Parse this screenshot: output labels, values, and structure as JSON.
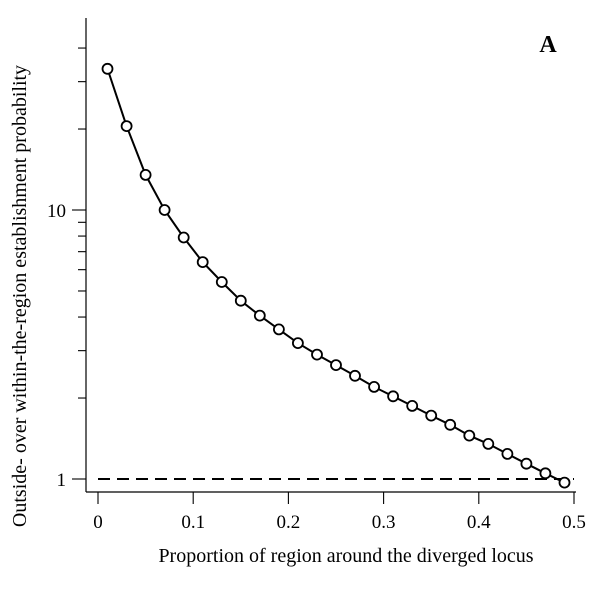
{
  "chart_data": {
    "type": "line",
    "title": "",
    "panel_label": "A",
    "xlabel": "Proportion of region around the diverged locus",
    "ylabel": "Outside- over within-the-region establishment probability",
    "xlim": [
      0,
      0.5
    ],
    "ylim": [
      0.9,
      40
    ],
    "y_scale": "log",
    "grid": false,
    "legend": "none",
    "x_ticks": [
      0,
      0.1,
      0.2,
      0.3,
      0.4,
      0.5
    ],
    "x_tick_labels": [
      "0",
      "0.1",
      "0.2",
      "0.3",
      "0.4",
      "0.5"
    ],
    "y_labeled_ticks": [
      1,
      10
    ],
    "y_tick_labels": [
      "1",
      "10"
    ],
    "reference_line": {
      "y": 1,
      "style": "dashed"
    },
    "series": [
      {
        "x": [
          0.01,
          0.03,
          0.05,
          0.07,
          0.09,
          0.11,
          0.13,
          0.15,
          0.17,
          0.19,
          0.21,
          0.23,
          0.25,
          0.27,
          0.29,
          0.31,
          0.33,
          0.35,
          0.37,
          0.39,
          0.41,
          0.43,
          0.45,
          0.47,
          0.49
        ],
        "y": [
          33.5,
          20.5,
          13.5,
          10.0,
          7.9,
          6.4,
          5.4,
          4.6,
          4.05,
          3.6,
          3.2,
          2.9,
          2.65,
          2.42,
          2.2,
          2.03,
          1.87,
          1.72,
          1.59,
          1.45,
          1.35,
          1.24,
          1.14,
          1.05,
          0.97
        ]
      }
    ]
  }
}
